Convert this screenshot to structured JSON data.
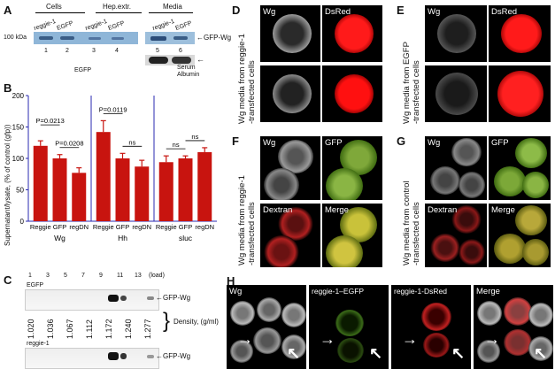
{
  "panels": {
    "A": {
      "label": "A",
      "group_cells": "Cells",
      "group_hep": "Hep.extr.",
      "group_media": "Media",
      "lane_names": [
        "reggie-1",
        "EGFP",
        "reggie-1",
        "EGFP",
        "reggie-1",
        "EGFP"
      ],
      "lane_numbers": [
        "1",
        "2",
        "3",
        "4",
        "5",
        "6"
      ],
      "kda": "100 kDa",
      "band_label": "GFP-Wg",
      "albumin_label_1": "Serum",
      "albumin_label_2": "Albumin",
      "egfp_footer": "EGFP"
    },
    "B": {
      "label": "B",
      "ylabel": "Supernatant/lysate, (% of control (gfp))"
    },
    "C": {
      "label": "C",
      "fractions": [
        "1",
        "3",
        "5",
        "7",
        "9",
        "11",
        "13",
        "(load)"
      ],
      "top_label": "EGFP",
      "bottom_label": "reggie-1",
      "band_label_top": "GFP-Wg",
      "band_label_bottom": "GFP-Wg",
      "densities": [
        "1.020",
        "1.036",
        "1.067",
        "1.112",
        "1.172",
        "1.240",
        "1.277"
      ],
      "density_label": "Density, (g/ml)"
    },
    "D": {
      "label": "D",
      "wg": "Wg",
      "dsred": "DsRed",
      "side_1": "Wg media from reggie-1",
      "side_2": "-transfected cells"
    },
    "E": {
      "label": "E",
      "wg": "Wg",
      "dsred": "DsRed",
      "side_1": "Wg media from EGFP",
      "side_2": "-transfected cells"
    },
    "F": {
      "label": "F",
      "wg": "Wg",
      "gfp": "GFP",
      "dextran": "Dextran",
      "merge": "Merge",
      "side_1": "Wg media from reggie-1",
      "side_2": "-transfected cells"
    },
    "G": {
      "label": "G",
      "wg": "Wg",
      "gfp": "GFP",
      "dextran": "Dextran",
      "merge": "Merge",
      "side_1": "Wg media from control",
      "side_2": "-transfected cells"
    },
    "H": {
      "label": "H",
      "wg": "Wg",
      "egfp": "reggie-1–EGFP",
      "dsred": "reggie-1-DsRed",
      "merge": "Merge"
    }
  },
  "chart_data": {
    "type": "bar",
    "ylim": [
      0,
      200
    ],
    "yticks": [
      0,
      50,
      100,
      150,
      200
    ],
    "bar_color": "#c8140f",
    "groups": [
      {
        "name": "Wg",
        "categories": [
          "Reggie",
          "GFP",
          "regDN"
        ],
        "values": [
          120,
          100,
          77
        ],
        "errors": [
          8,
          6,
          8
        ],
        "annotations": [
          {
            "text": "P=0.0213",
            "from": 0,
            "to": 1
          },
          {
            "text": "P=0.0208",
            "from": 1,
            "to": 2
          }
        ]
      },
      {
        "name": "Hh",
        "categories": [
          "Reggie",
          "GFP",
          "regDN"
        ],
        "values": [
          142,
          100,
          87
        ],
        "errors": [
          18,
          8,
          10
        ],
        "annotations": [
          {
            "text": "P=0.0119",
            "from": 0,
            "to": 1
          },
          {
            "text": "ns",
            "from": 1,
            "to": 2
          }
        ]
      },
      {
        "name": "sluc",
        "categories": [
          "Reggie",
          "GFP",
          "regDN"
        ],
        "values": [
          94,
          100,
          110
        ],
        "errors": [
          10,
          4,
          7
        ],
        "annotations": [
          {
            "text": "ns",
            "from": 0,
            "to": 1
          },
          {
            "text": "ns",
            "from": 1,
            "to": 2
          }
        ]
      }
    ]
  }
}
